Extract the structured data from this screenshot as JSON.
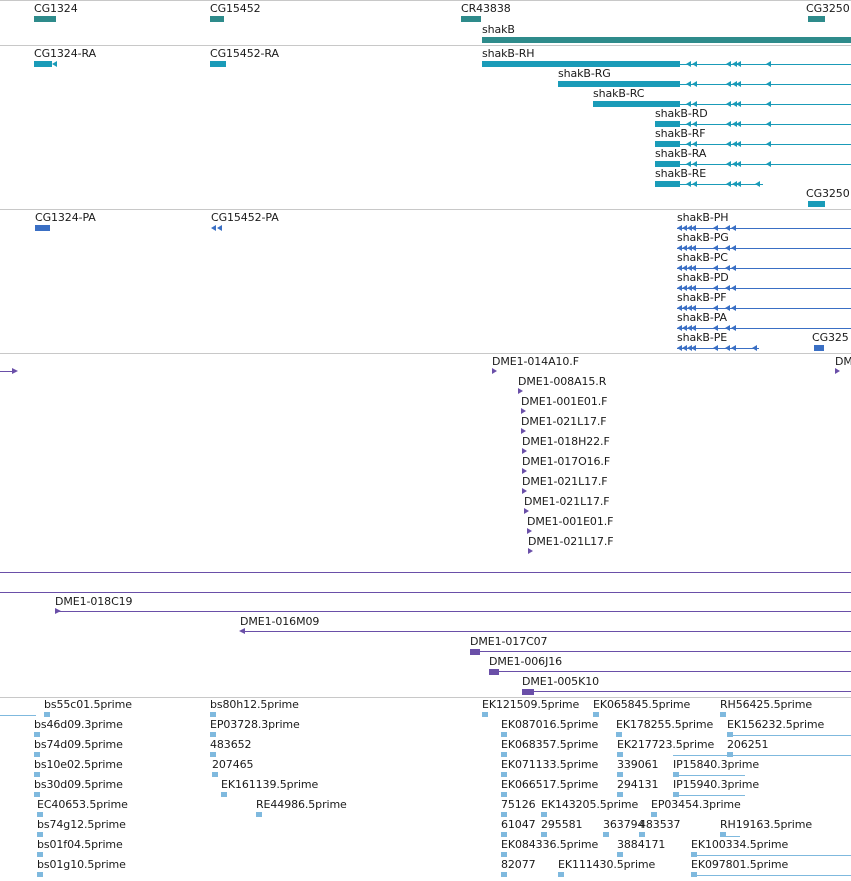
{
  "colors": {
    "gene": "#2e8b8b",
    "transcript": "#1a9bb8",
    "protein": "#3a6fc4",
    "clone": "#6a4fa8",
    "est": "#7fb9de",
    "separator": "#c8c8c8"
  },
  "tracks": {
    "genes": {
      "labels": [
        "CG1324",
        "CG15452",
        "CR43838",
        "CG3250",
        "shakB"
      ]
    },
    "transcripts": {
      "labels": [
        "CG1324-RA",
        "CG15452-RA",
        "shakB-RH",
        "shakB-RG",
        "shakB-RC",
        "shakB-RD",
        "shakB-RF",
        "shakB-RA",
        "shakB-RE",
        "CG3250"
      ]
    },
    "proteins": {
      "labels": [
        "CG1324-PA",
        "CG15452-PA",
        "shakB-PH",
        "shakB-PG",
        "shakB-PC",
        "shakB-PD",
        "shakB-PF",
        "shakB-PA",
        "shakB-PE",
        "CG325"
      ]
    },
    "clone_ends": {
      "labels": [
        "DME1-014A10.F",
        "DME1-008A15.R",
        "DME1-001E01.F",
        "DME1-021L17.F",
        "DME1-018H22.F",
        "DME1-017O16.F",
        "DME1-021L17.F",
        "DME1-021L17.F",
        "DME1-001E01.F",
        "DME1-021L17.F",
        "DM"
      ]
    },
    "clones": {
      "labels": [
        "DME1-018C19",
        "DME1-016M09",
        "DME1-017C07",
        "DME1-006J16",
        "DME1-005K10"
      ]
    },
    "ests": {
      "labels": [
        "bs55c01.5prime",
        "bs46d09.3prime",
        "bs74d09.5prime",
        "bs10e02.5prime",
        "bs30d09.5prime",
        "EC40653.5prime",
        "bs74g12.5prime",
        "bs01f04.5prime",
        "bs01g10.5prime",
        "bs80h12.5prime",
        "EP03728.3prime",
        "483652",
        "207465",
        "EK161139.5prime",
        "RE44986.5prime",
        "EK121509.5prime",
        "EK065845.5prime",
        "RH56425.5prime",
        "EK087016.5prime",
        "EK178255.5prime",
        "EK156232.5prime",
        "EK068357.5prime",
        "EK217723.5prime",
        "206251",
        "EK071133.5prime",
        "339061",
        "IP15840.3prime",
        "EK066517.5prime",
        "294131",
        "IP15940.3prime",
        "75126",
        "EK143205.5prime",
        "EP03454.3prime",
        "61047",
        "295581",
        "363794",
        "483537",
        "RH19163.5prime",
        "EK084336.5prime",
        "3884171",
        "EK100334.5prime",
        "82077",
        "EK111430.5prime",
        "EK097801.5prime"
      ]
    }
  }
}
